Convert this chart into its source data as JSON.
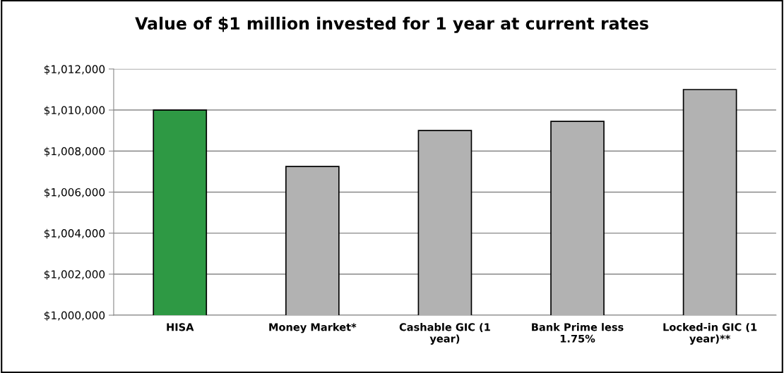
{
  "chart_data": {
    "type": "bar",
    "title": "Value of $1 million invested for 1 year at current rates",
    "categories": [
      "HISA",
      "Money Market*",
      "Cashable GIC (1 year)",
      "Bank Prime less 1.75%",
      "Locked-in GIC (1 year)**"
    ],
    "values": [
      1010000,
      1007250,
      1009000,
      1009450,
      1011000
    ],
    "colors": [
      "#2e9944",
      "#b2b2b2",
      "#b2b2b2",
      "#b2b2b2",
      "#b2b2b2"
    ],
    "ylim": [
      1000000,
      1012000
    ],
    "yticks": [
      {
        "value": 1000000,
        "label": "$1,000,000"
      },
      {
        "value": 1002000,
        "label": "$1,002,000"
      },
      {
        "value": 1004000,
        "label": "$1,004,000"
      },
      {
        "value": 1006000,
        "label": "$1,006,000"
      },
      {
        "value": 1008000,
        "label": "$1,008,000"
      },
      {
        "value": 1010000,
        "label": "$1,010,000"
      },
      {
        "value": 1012000,
        "label": "$1,012,000"
      }
    ],
    "grid": "y"
  }
}
